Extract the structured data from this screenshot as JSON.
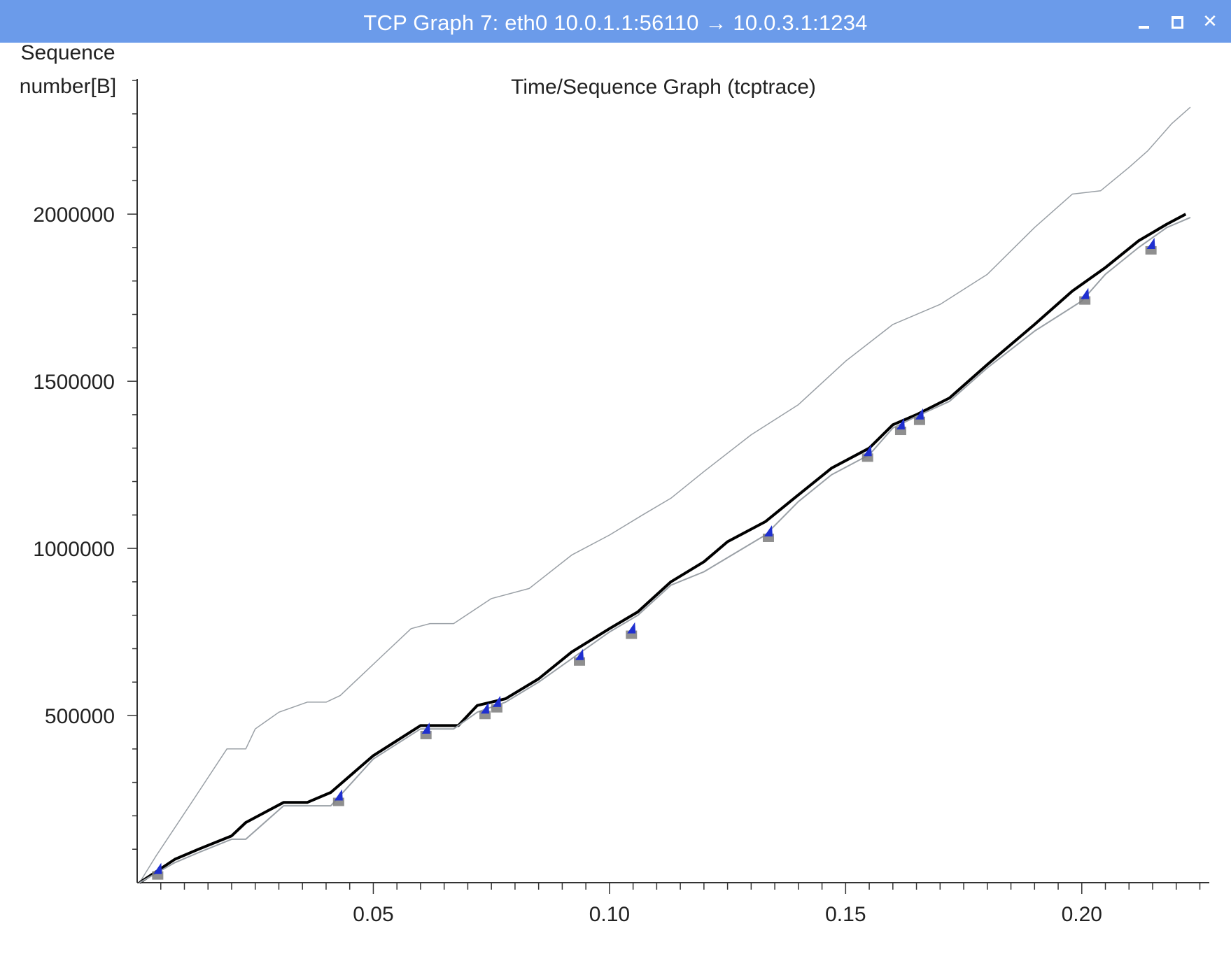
{
  "window": {
    "title": "TCP Graph 7: eth0 10.0.1.1:56110 → 10.0.3.1:1234",
    "controls": {
      "minimize": "minimize-icon",
      "maximize": "maximize-icon",
      "close": "close-icon"
    }
  },
  "colors": {
    "titlebar": "#6b9bea",
    "data_line": "#000000",
    "window_line": "#9aa0a6",
    "ack_line": "#9aa0a6",
    "sack_marker": "#1f2fd0"
  },
  "chart_data": {
    "type": "line",
    "title": "Time/Sequence Graph (tcptrace)",
    "ylabel": "Sequence number[B]",
    "ylabel_lines": [
      "Sequence",
      "number[B]"
    ],
    "xlabel": "",
    "xlim": [
      0,
      0.227
    ],
    "ylim": [
      0,
      2400000
    ],
    "x_ticks": [
      0.05,
      0.1,
      0.15,
      0.2
    ],
    "x_tick_labels": [
      "0.05",
      "0.10",
      "0.15",
      "0.20"
    ],
    "y_ticks": [
      500000,
      1000000,
      1500000,
      2000000
    ],
    "y_tick_labels": [
      "500000",
      "1000000",
      "1500000",
      "2000000"
    ],
    "grid": false,
    "series": [
      {
        "x": [
          0.0005,
          0.004,
          0.012,
          0.019,
          0.023,
          0.025,
          0.03,
          0.036,
          0.04,
          0.043,
          0.052,
          0.058,
          0.062,
          0.067,
          0.075,
          0.083,
          0.092,
          0.1,
          0.107,
          0.113,
          0.12,
          0.13,
          0.14,
          0.15,
          0.16,
          0.17,
          0.18,
          0.19,
          0.198,
          0.204,
          0.21,
          0.214,
          0.219,
          0.223
        ],
        "y": [
          0,
          80000,
          250000,
          400000,
          400000,
          460000,
          510000,
          540000,
          540000,
          560000,
          680000,
          760000,
          775000,
          775000,
          850000,
          880000,
          980000,
          1040000,
          1100000,
          1150000,
          1230000,
          1340000,
          1430000,
          1560000,
          1670000,
          1730000,
          1820000,
          1960000,
          2060000,
          2070000,
          2140000,
          2190000,
          2270000,
          2320000
        ]
      },
      {
        "x": [
          0.0005,
          0.008,
          0.013,
          0.02,
          0.023,
          0.031,
          0.036,
          0.041,
          0.05,
          0.06,
          0.062,
          0.068,
          0.072,
          0.078,
          0.085,
          0.092,
          0.1,
          0.106,
          0.113,
          0.12,
          0.125,
          0.133,
          0.14,
          0.147,
          0.155,
          0.16,
          0.165,
          0.172,
          0.18,
          0.19,
          0.198,
          0.205,
          0.212,
          0.218,
          0.222
        ],
        "y": [
          0,
          70000,
          100000,
          140000,
          180000,
          240000,
          240000,
          270000,
          380000,
          470000,
          470000,
          470000,
          530000,
          550000,
          610000,
          690000,
          760000,
          810000,
          900000,
          960000,
          1020000,
          1080000,
          1160000,
          1240000,
          1300000,
          1370000,
          1400000,
          1450000,
          1550000,
          1670000,
          1770000,
          1840000,
          1920000,
          1970000,
          2000000
        ]
      },
      {
        "x": [
          0.0005,
          0.008,
          0.013,
          0.02,
          0.023,
          0.031,
          0.041,
          0.05,
          0.06,
          0.067,
          0.072,
          0.078,
          0.085,
          0.092,
          0.1,
          0.106,
          0.113,
          0.12,
          0.133,
          0.14,
          0.147,
          0.155,
          0.16,
          0.165,
          0.172,
          0.18,
          0.19,
          0.2,
          0.205,
          0.212,
          0.218,
          0.223
        ],
        "y": [
          0,
          60000,
          90000,
          130000,
          130000,
          230000,
          230000,
          370000,
          460000,
          460000,
          510000,
          540000,
          600000,
          670000,
          750000,
          800000,
          890000,
          930000,
          1040000,
          1140000,
          1220000,
          1280000,
          1360000,
          1395000,
          1440000,
          1540000,
          1650000,
          1740000,
          1820000,
          1900000,
          1960000,
          1990000
        ]
      }
    ],
    "sack_markers": [
      {
        "x": 0.0042,
        "y": 30000
      },
      {
        "x": 0.0425,
        "y": 250000
      },
      {
        "x": 0.061,
        "y": 450000
      },
      {
        "x": 0.0735,
        "y": 510000
      },
      {
        "x": 0.076,
        "y": 530000
      },
      {
        "x": 0.0935,
        "y": 670000
      },
      {
        "x": 0.1045,
        "y": 750000
      },
      {
        "x": 0.1335,
        "y": 1040000
      },
      {
        "x": 0.1545,
        "y": 1280000
      },
      {
        "x": 0.1615,
        "y": 1360000
      },
      {
        "x": 0.1655,
        "y": 1390000
      },
      {
        "x": 0.2005,
        "y": 1750000
      },
      {
        "x": 0.2145,
        "y": 1900000
      }
    ]
  }
}
